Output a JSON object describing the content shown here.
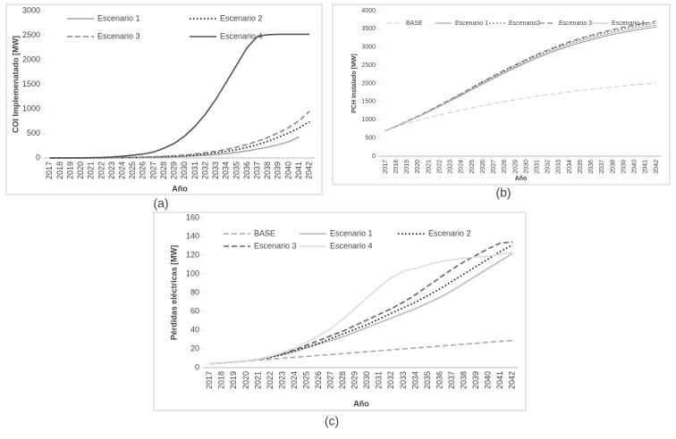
{
  "chart_data": [
    {
      "type": "line",
      "caption": "(a)",
      "ylabel": "COI Implemenatado [MW]",
      "xlabel": "Año",
      "categories": [
        "2017",
        "2018",
        "2019",
        "2020",
        "2021",
        "2022",
        "2023",
        "2024",
        "2025",
        "2026",
        "2027",
        "2028",
        "2029",
        "2030",
        "2031",
        "2032",
        "2033",
        "2034",
        "2035",
        "2036",
        "2037",
        "2038",
        "2039",
        "2040",
        "2041",
        "2042"
      ],
      "ylim": [
        0,
        3000
      ],
      "yticks": [
        0,
        500,
        1000,
        1500,
        2000,
        2500,
        3000
      ],
      "series": [
        {
          "name": "Escenario 1",
          "color": "#aaaaaa",
          "style": "solid",
          "values": [
            0,
            0,
            0,
            0,
            1,
            2,
            3,
            5,
            7,
            10,
            14,
            19,
            25,
            33,
            43,
            55,
            70,
            90,
            115,
            145,
            180,
            220,
            270,
            330,
            430,
            null
          ]
        },
        {
          "name": "Escenario 2",
          "color": "#111111",
          "style": "dotted",
          "values": [
            0,
            0,
            0,
            0,
            1,
            2,
            4,
            6,
            9,
            13,
            18,
            25,
            33,
            45,
            60,
            80,
            105,
            135,
            170,
            215,
            270,
            340,
            420,
            510,
            610,
            740
          ]
        },
        {
          "name": "Escenario 3",
          "color": "#888888",
          "style": "dashed",
          "values": [
            0,
            0,
            0,
            0,
            1,
            3,
            5,
            8,
            12,
            18,
            25,
            35,
            45,
            60,
            80,
            105,
            135,
            175,
            220,
            275,
            340,
            420,
            510,
            620,
            760,
            950
          ]
        },
        {
          "name": "Escenario 4",
          "color": "#555555",
          "style": "solid",
          "values": [
            0,
            0,
            0,
            2,
            5,
            10,
            20,
            35,
            55,
            80,
            120,
            200,
            300,
            450,
            650,
            900,
            1200,
            1550,
            1900,
            2250,
            2480,
            2510,
            2520,
            2520,
            2520,
            2520
          ]
        }
      ]
    },
    {
      "type": "line",
      "caption": "(b)",
      "ylabel": "PCH Instalado [MW]",
      "xlabel": "Año",
      "categories": [
        "2017",
        "2018",
        "2019",
        "2020",
        "2021",
        "2022",
        "2023",
        "2024",
        "2025",
        "2026",
        "2027",
        "2028",
        "2029",
        "2030",
        "2031",
        "2032",
        "2033",
        "2034",
        "2035",
        "2036",
        "2037",
        "2038",
        "2039",
        "2040",
        "2041",
        "2042"
      ],
      "ylim": [
        0,
        4000
      ],
      "yticks": [
        0,
        500,
        1000,
        1500,
        2000,
        2500,
        3000,
        3500,
        4000
      ],
      "series": [
        {
          "name": "BASE",
          "color": "#cccccc",
          "style": "dashed",
          "values": [
            700,
            800,
            900,
            980,
            1060,
            1130,
            1200,
            1270,
            1330,
            1390,
            1450,
            1500,
            1550,
            1600,
            1650,
            1690,
            1730,
            1770,
            1810,
            1840,
            1870,
            1900,
            1930,
            1960,
            1990,
            2010
          ]
        },
        {
          "name": "Escenario 1",
          "color": "#999999",
          "style": "solid",
          "values": [
            700,
            820,
            950,
            1080,
            1220,
            1370,
            1520,
            1670,
            1830,
            1990,
            2140,
            2290,
            2430,
            2570,
            2700,
            2820,
            2930,
            3030,
            3120,
            3200,
            3280,
            3350,
            3410,
            3460,
            3510,
            3550
          ]
        },
        {
          "name": "Escenario2",
          "color": "#333333",
          "style": "dotted",
          "values": [
            700,
            825,
            960,
            1095,
            1240,
            1395,
            1550,
            1705,
            1870,
            2035,
            2190,
            2345,
            2490,
            2635,
            2770,
            2895,
            3010,
            3115,
            3210,
            3295,
            3375,
            3445,
            3510,
            3565,
            3615,
            3660
          ]
        },
        {
          "name": "Escenario 3",
          "color": "#666666",
          "style": "dashed",
          "values": [
            700,
            828,
            965,
            1102,
            1250,
            1405,
            1562,
            1720,
            1888,
            2055,
            2212,
            2370,
            2515,
            2662,
            2800,
            2925,
            3040,
            3148,
            3245,
            3330,
            3412,
            3485,
            3550,
            3605,
            3660,
            3710
          ]
        },
        {
          "name": "Escenario 4",
          "color": "#bbbbbb",
          "style": "solid",
          "values": [
            700,
            822,
            955,
            1088,
            1230,
            1380,
            1535,
            1688,
            1850,
            2012,
            2165,
            2318,
            2460,
            2600,
            2735,
            2858,
            2970,
            3072,
            3165,
            3248,
            3328,
            3398,
            3460,
            3512,
            3562,
            3605
          ]
        }
      ]
    },
    {
      "type": "line",
      "caption": "(c)",
      "ylabel": "Pérdidas eléctricas [MW]",
      "xlabel": "Año",
      "categories": [
        "2017",
        "2018",
        "2019",
        "2020",
        "2021",
        "2022",
        "2023",
        "2024",
        "2025",
        "2026",
        "2027",
        "2028",
        "2029",
        "2030",
        "2031",
        "2032",
        "2033",
        "2034",
        "2035",
        "2036",
        "2037",
        "2038",
        "2039",
        "2040",
        "2041",
        "2042"
      ],
      "ylim": [
        0,
        160
      ],
      "yticks": [
        0,
        20,
        40,
        60,
        80,
        100,
        120,
        140,
        160
      ],
      "series": [
        {
          "name": "BASE",
          "color": "#aaaaaa",
          "style": "dashed",
          "values": [
            4,
            5,
            6,
            7,
            8,
            9,
            10,
            11,
            12,
            13,
            14,
            15,
            16,
            17,
            18,
            19,
            20,
            21,
            22,
            23,
            24,
            25,
            26,
            27,
            28,
            29
          ]
        },
        {
          "name": "Escenario 1",
          "color": "#bbbbbb",
          "style": "solid",
          "values": [
            4,
            5,
            6,
            7,
            9,
            11,
            14,
            17,
            21,
            25,
            29,
            33,
            38,
            43,
            48,
            53,
            58,
            63,
            69,
            75,
            82,
            90,
            98,
            106,
            114,
            122
          ]
        },
        {
          "name": "Escenario 2",
          "color": "#111111",
          "style": "dotted",
          "values": [
            4,
            5,
            6,
            7,
            9,
            11,
            14,
            18,
            22,
            26,
            31,
            36,
            41,
            46,
            52,
            58,
            64,
            70,
            77,
            84,
            92,
            100,
            108,
            116,
            124,
            131
          ]
        },
        {
          "name": "Escenario 3",
          "color": "#666666",
          "style": "dashed",
          "values": [
            4,
            5,
            6,
            7,
            9,
            12,
            15,
            19,
            24,
            29,
            34,
            39,
            45,
            51,
            57,
            63,
            70,
            78,
            87,
            96,
            105,
            113,
            120,
            127,
            133,
            134
          ]
        },
        {
          "name": "Escenario 4",
          "color": "#dddddd",
          "style": "solid",
          "values": [
            4,
            5,
            6,
            7,
            9,
            12,
            16,
            21,
            27,
            34,
            42,
            52,
            63,
            75,
            86,
            96,
            103,
            106,
            110,
            113,
            115,
            117,
            118,
            119,
            121,
            123
          ]
        }
      ]
    }
  ]
}
